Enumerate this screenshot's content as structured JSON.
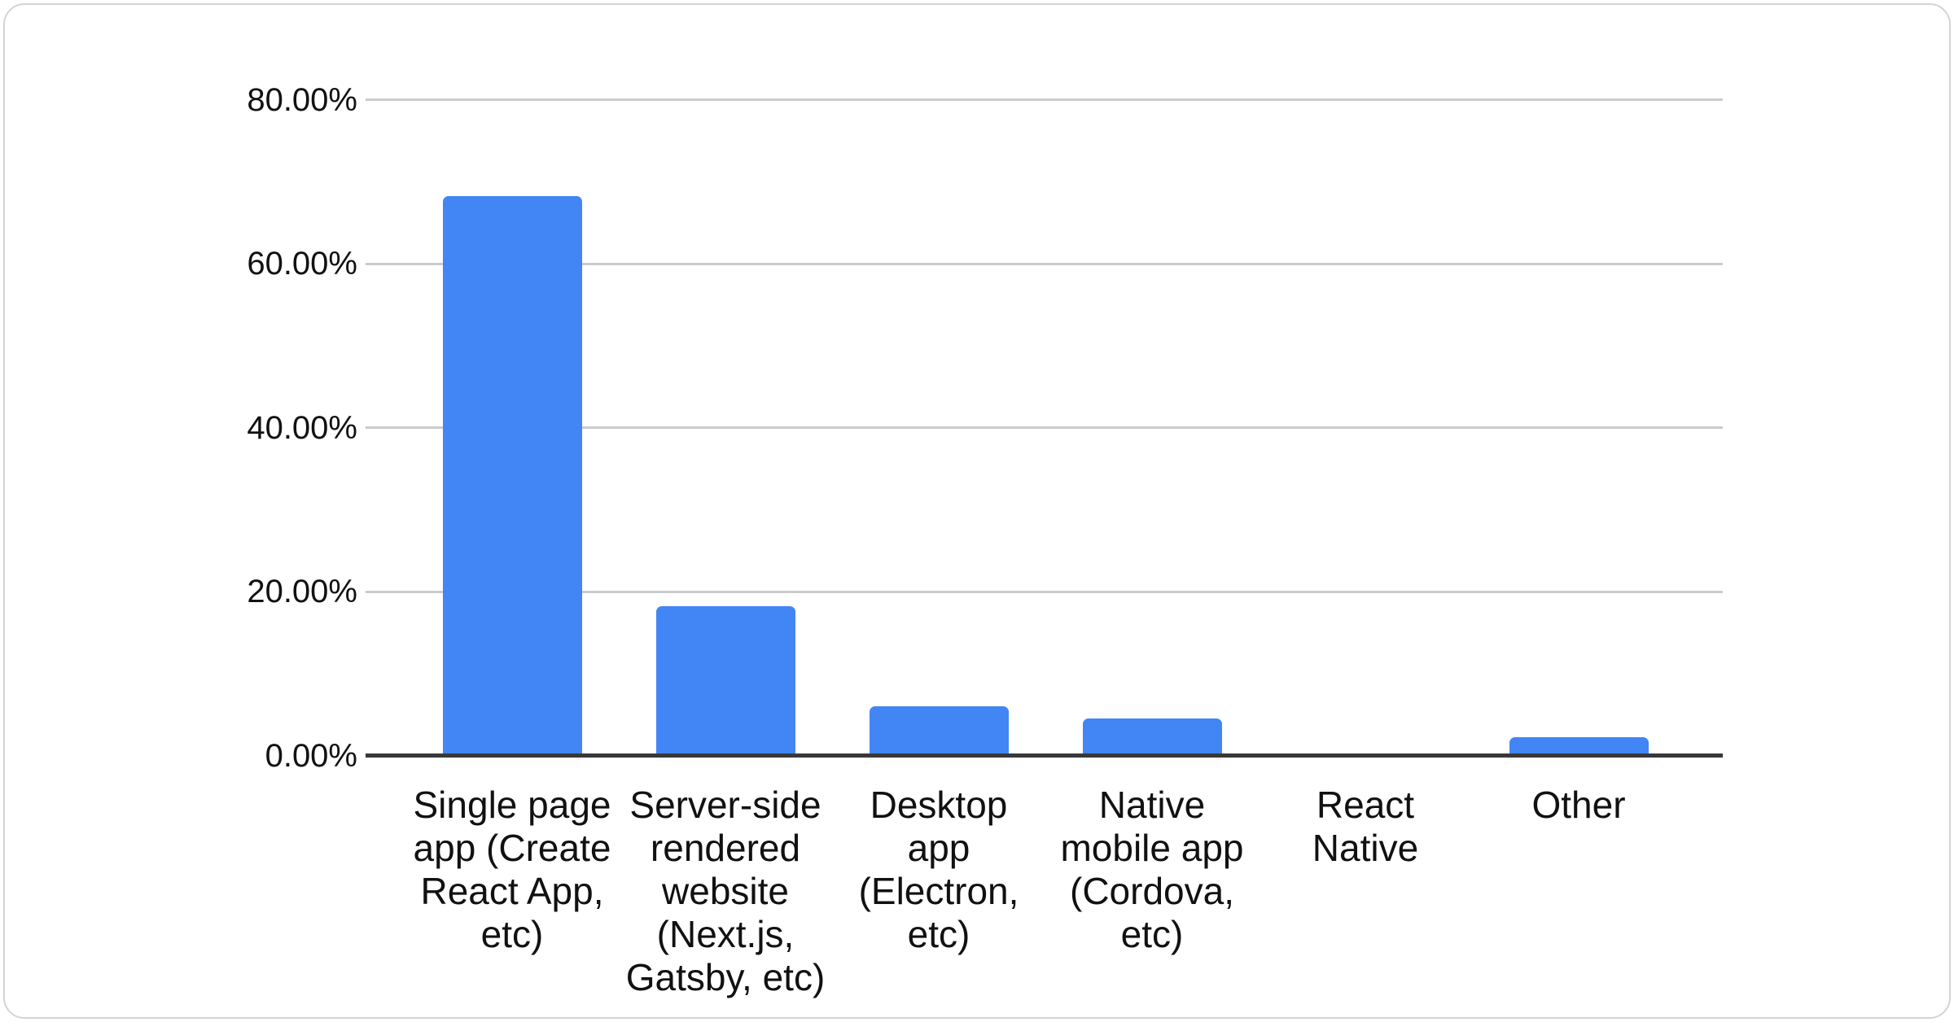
{
  "chart_data": {
    "type": "bar",
    "title": "",
    "categories": [
      "Single page app (Create React App, etc)",
      "Server-side rendered website (Next.js, Gatsby, etc)",
      "Desktop app (Electron, etc)",
      "Native mobile app (Cordova, etc)",
      "React Native",
      "Other"
    ],
    "values": [
      68.3,
      18.3,
      6.1,
      4.6,
      0,
      2.3
    ],
    "unit": "%",
    "xlabel": "",
    "ylabel": "",
    "y_axis": {
      "min": 0,
      "max": 80,
      "tick_step": 20,
      "tick_labels": [
        "0.00%",
        "20.00%",
        "40.00%",
        "60.00%",
        "80.00%"
      ]
    },
    "grid": true,
    "legend": "none",
    "colors": {
      "bar": "#4285f4",
      "gridline": "#cccccc",
      "axis_line": "#383838",
      "label_text": "#111111",
      "card_border": "#d4d4d4",
      "background": "#ffffff"
    }
  }
}
